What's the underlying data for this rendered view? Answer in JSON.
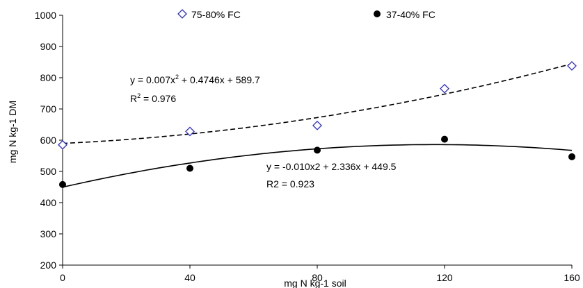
{
  "chart_data": {
    "type": "scatter",
    "xlabel": "mg N kg-1 soil",
    "ylabel": "mg N kg-1 DM",
    "xlim": [
      0,
      160
    ],
    "ylim": [
      200,
      1000
    ],
    "x_ticks": [
      "0",
      "40",
      "80",
      "120",
      "160"
    ],
    "y_ticks": [
      "200",
      "300",
      "400",
      "500",
      "600",
      "700",
      "800",
      "900",
      "1000"
    ],
    "grid": false,
    "legend": "top",
    "series": [
      {
        "name": "75-80% FC",
        "marker": "diamond-open",
        "line": "dashed",
        "x": [
          0,
          40,
          80,
          120,
          160
        ],
        "y": [
          585,
          628,
          647,
          765,
          838
        ],
        "trend": {
          "a": 0.007,
          "b": 0.4746,
          "c": 589.7
        },
        "equation": {
          "base": "y = 0.007x",
          "exp": "2",
          "rest": " + 0.4746x + 589.7"
        },
        "r2": {
          "base": "R",
          "exp": "2",
          "rest": " = 0.976"
        }
      },
      {
        "name": "37-40% FC",
        "marker": "circle-filled",
        "line": "solid",
        "x": [
          0,
          40,
          80,
          120,
          160
        ],
        "y": [
          458,
          510,
          568,
          603,
          547
        ],
        "trend": {
          "a": -0.01,
          "b": 2.336,
          "c": 449.5
        },
        "equation_text": "y = -0.010x2 + 2.336x + 449.5",
        "r2_text": "R2 = 0.923"
      }
    ],
    "colors": {
      "series1_marker": "#2b2bd4",
      "line": "#000000"
    }
  }
}
